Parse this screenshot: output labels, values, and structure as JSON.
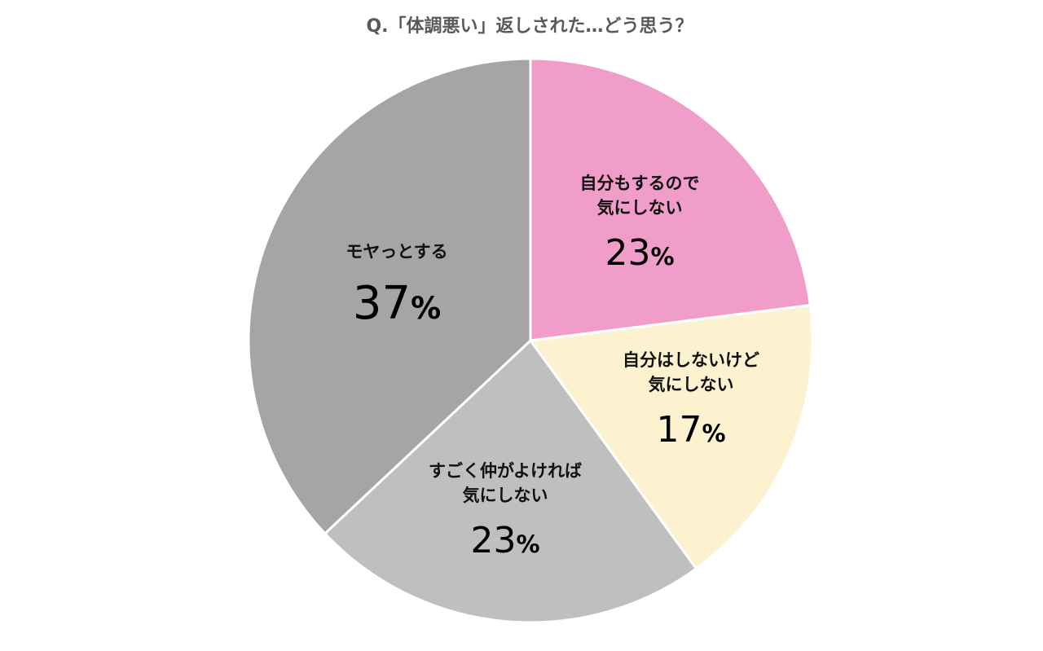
{
  "chart_data": {
    "type": "pie",
    "title": "Q.「体調悪い」返しされた…どう思う？",
    "start_angle_deg": 0,
    "direction": "clockwise",
    "slices": [
      {
        "label_lines": [
          "自分もするので",
          "気にしない"
        ],
        "value": 23,
        "percent_text": "23",
        "color": "#f09dca"
      },
      {
        "label_lines": [
          "自分はしないけど",
          "気にしない"
        ],
        "value": 17,
        "percent_text": "17",
        "color": "#fdf2cf"
      },
      {
        "label_lines": [
          "すごく仲がよければ",
          "気にしない"
        ],
        "value": 23,
        "percent_text": "23",
        "color": "#bfbfbf"
      },
      {
        "label_lines": [
          "モヤっとする"
        ],
        "value": 37,
        "percent_text": "37",
        "color": "#a5a5a5"
      }
    ],
    "percent_sign": "%",
    "slice_border_color": "#ffffff"
  }
}
